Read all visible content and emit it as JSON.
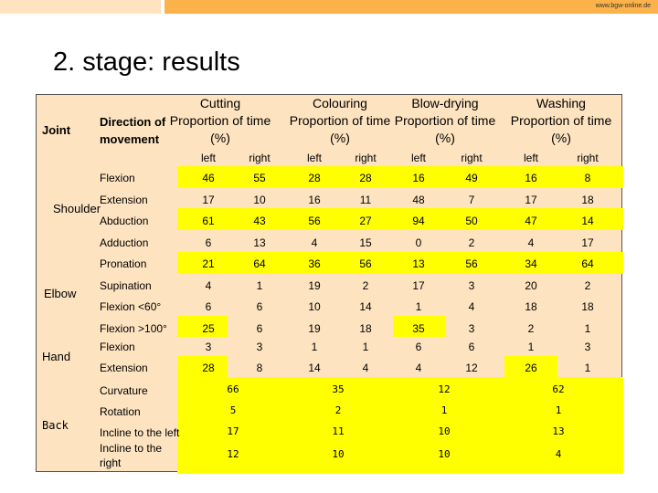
{
  "header": {
    "url": "www.bgw-online.de"
  },
  "title": "2. stage: results",
  "table": {
    "joint_header": "Joint",
    "direction_header_line1": "Direction of",
    "direction_header_line2": "movement",
    "activities": [
      {
        "name": "Cutting",
        "line1": "Proportion of time",
        "line2": "(%)",
        "left": "left",
        "right": "right"
      },
      {
        "name": "Colouring",
        "line1": "Proportion of time",
        "line2": "(%)",
        "left": "left",
        "right": "right"
      },
      {
        "name": "Blow-drying",
        "line1": "Proportion of time",
        "line2": "(%)",
        "left": "left",
        "right": "right"
      },
      {
        "name": "Washing",
        "line1": "Proportion of time",
        "line2": "(%)",
        "left": "left",
        "right": "right"
      }
    ],
    "joints": {
      "shoulder": "Shoulder",
      "elbow": "Elbow",
      "hand": "Hand",
      "back": "Back"
    },
    "rows": [
      {
        "movement": "Flexion",
        "values": [
          "46",
          "55",
          "28",
          "28",
          "16",
          "49",
          "16",
          "8"
        ]
      },
      {
        "movement": "Extension",
        "values": [
          "17",
          "10",
          "16",
          "11",
          "48",
          "7",
          "17",
          "18"
        ]
      },
      {
        "movement": "Abduction",
        "values": [
          "61",
          "43",
          "56",
          "27",
          "94",
          "50",
          "47",
          "14"
        ]
      },
      {
        "movement": "Adduction",
        "values": [
          "6",
          "13",
          "4",
          "15",
          "0",
          "2",
          "4",
          "17"
        ]
      },
      {
        "movement": "Pronation",
        "values": [
          "21",
          "64",
          "36",
          "56",
          "13",
          "56",
          "34",
          "64"
        ]
      },
      {
        "movement": "Supination",
        "values": [
          "4",
          "1",
          "19",
          "2",
          "17",
          "3",
          "20",
          "2"
        ]
      },
      {
        "movement": "Flexion  <60°",
        "values": [
          "6",
          "6",
          "10",
          "14",
          "1",
          "4",
          "18",
          "18"
        ]
      },
      {
        "movement": "Flexion  >100°",
        "values": [
          "25",
          "6",
          "19",
          "18",
          "35",
          "3",
          "2",
          "1"
        ]
      },
      {
        "movement": "Flexion",
        "values": [
          "3",
          "3",
          "1",
          "1",
          "6",
          "6",
          "1",
          "3"
        ]
      },
      {
        "movement": "Extension",
        "values": [
          "28",
          "8",
          "14",
          "4",
          "4",
          "12",
          "26",
          "1"
        ]
      }
    ],
    "back_rows": [
      {
        "movement": "Curvature",
        "values": [
          "66",
          "35",
          "12",
          "62"
        ]
      },
      {
        "movement": "Rotation",
        "values": [
          "5",
          "2",
          "1",
          "1"
        ]
      },
      {
        "movement": "Incline to the left",
        "values": [
          "17",
          "11",
          "10",
          "13"
        ]
      },
      {
        "movement": "Incline to the right",
        "values": [
          "12",
          "10",
          "10",
          "4"
        ]
      }
    ]
  }
}
